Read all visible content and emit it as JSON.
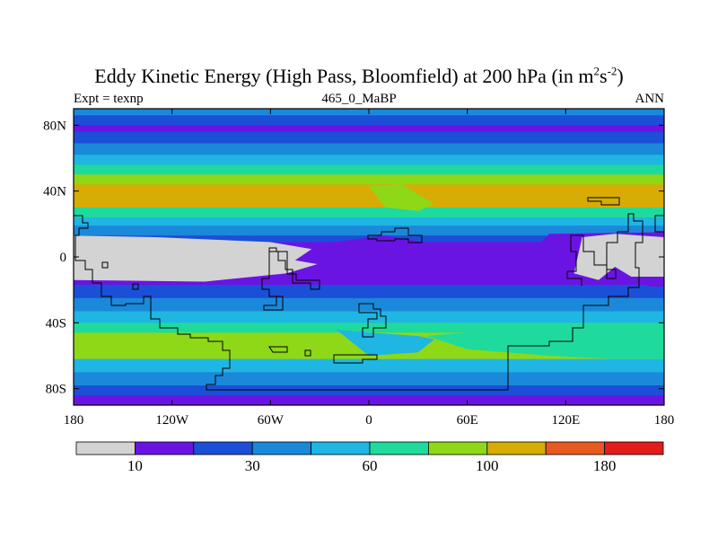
{
  "header": {
    "title_main": "Eddy Kinetic Energy (High Pass, Bloomfield) at 200 hPa (in m",
    "title_sup1": "2",
    "title_mid": "s",
    "title_sup2": "-2",
    "title_end": ")",
    "left_label": "Expt = texnp",
    "center_label": "465_0_MaBP",
    "right_label": "ANN"
  },
  "chart_data": {
    "type": "heatmap",
    "title": "Eddy Kinetic Energy (High Pass, Bloomfield) at 200 hPa (in m2s-2)",
    "subtitle": "465_0_MaBP",
    "xlim": [
      -180,
      180
    ],
    "ylim": [
      -90,
      90
    ],
    "x_ticks": [
      {
        "value": -180,
        "label": "180"
      },
      {
        "value": -120,
        "label": "120W"
      },
      {
        "value": -60,
        "label": "60W"
      },
      {
        "value": 0,
        "label": "0"
      },
      {
        "value": 60,
        "label": "60E"
      },
      {
        "value": 120,
        "label": "120E"
      },
      {
        "value": 180,
        "label": "180"
      }
    ],
    "y_ticks": [
      {
        "value": 80,
        "label": "80N"
      },
      {
        "value": 40,
        "label": "40N"
      },
      {
        "value": 0,
        "label": "0"
      },
      {
        "value": -40,
        "label": "40S"
      },
      {
        "value": -80,
        "label": "80S"
      }
    ],
    "colorbar": {
      "colors": [
        "#d3d3d3",
        "#6a14e3",
        "#1b4fd8",
        "#1b89d9",
        "#1fb6e3",
        "#1fda9d",
        "#8ed817",
        "#d6ac05",
        "#e8591f",
        "#e31b1b"
      ],
      "labels": [
        {
          "text": "10",
          "after_bin": 1
        },
        {
          "text": "30",
          "after_bin": 3
        },
        {
          "text": "60",
          "after_bin": 5
        },
        {
          "text": "100",
          "after_bin": 7
        },
        {
          "text": "180",
          "after_bin": 9
        }
      ]
    },
    "latitude_bands": [
      {
        "lat_top": 90,
        "lat_bottom": 86,
        "level": 3
      },
      {
        "lat_top": 86,
        "lat_bottom": 80,
        "level": 2
      },
      {
        "lat_top": 80,
        "lat_bottom": 76,
        "level": 1
      },
      {
        "lat_top": 76,
        "lat_bottom": 69,
        "level": 2
      },
      {
        "lat_top": 69,
        "lat_bottom": 62,
        "level": 3
      },
      {
        "lat_top": 62,
        "lat_bottom": 56,
        "level": 4
      },
      {
        "lat_top": 56,
        "lat_bottom": 50,
        "level": 5
      },
      {
        "lat_top": 50,
        "lat_bottom": 44,
        "level": 6
      },
      {
        "lat_top": 44,
        "lat_bottom": 30,
        "level": 7
      },
      {
        "lat_top": 30,
        "lat_bottom": 24,
        "level": 5
      },
      {
        "lat_top": 24,
        "lat_bottom": 19,
        "level": 4
      },
      {
        "lat_top": 19,
        "lat_bottom": 13,
        "level": 3
      },
      {
        "lat_top": 13,
        "lat_bottom": 9,
        "level": 2
      },
      {
        "lat_top": 9,
        "lat_bottom": -17,
        "level": 1
      },
      {
        "lat_top": -17,
        "lat_bottom": -25,
        "level": 2
      },
      {
        "lat_top": -25,
        "lat_bottom": -33,
        "level": 3
      },
      {
        "lat_top": -33,
        "lat_bottom": -40,
        "level": 4
      },
      {
        "lat_top": -40,
        "lat_bottom": -46,
        "level": 5
      },
      {
        "lat_top": -46,
        "lat_bottom": -62,
        "level": 6
      },
      {
        "lat_top": -62,
        "lat_bottom": -70,
        "level": 4
      },
      {
        "lat_top": -70,
        "lat_bottom": -78,
        "level": 3
      },
      {
        "lat_top": -78,
        "lat_bottom": -84,
        "level": 2
      },
      {
        "lat_top": -84,
        "lat_bottom": -90,
        "level": 1
      }
    ],
    "regions": [
      {
        "name": "pacific-minimum",
        "level": 0,
        "lon": [
          -180,
          -180,
          -100,
          -50,
          -30,
          -30,
          -60,
          -130,
          -180
        ],
        "lat": [
          13,
          -14,
          -15,
          -10,
          -4,
          4,
          9,
          12,
          13
        ]
      },
      {
        "name": "central-weak",
        "level": 1,
        "lon": [
          -45,
          -10,
          20,
          40,
          40,
          10,
          -30,
          -45
        ],
        "lat": [
          -2,
          -8,
          -12,
          -10,
          8,
          13,
          8,
          -2
        ]
      },
      {
        "name": "east-asia-minimum",
        "level": 1,
        "lon": [
          105,
          115,
          130,
          150,
          172,
          180,
          180,
          110,
          100,
          105
        ],
        "lat": [
          -4,
          -14,
          -12,
          -12,
          -18,
          -18,
          15,
          14,
          4,
          -4
        ]
      },
      {
        "name": "west-pacific-minimum",
        "level": 0,
        "lon": [
          125,
          140,
          150,
          160,
          180,
          180,
          150,
          130,
          125
        ],
        "lat": [
          -10,
          -14,
          -6,
          -12,
          -12,
          12,
          14,
          12,
          -10
        ]
      },
      {
        "name": "atlantic-jet-gap",
        "level": 6,
        "lon": [
          0,
          20,
          30,
          40,
          30,
          10,
          0
        ],
        "lat": [
          43,
          44,
          38,
          32,
          28,
          30,
          43
        ]
      },
      {
        "name": "southern-jet-east",
        "level": 5,
        "lon": [
          35,
          80,
          130,
          160,
          180,
          180,
          150,
          110,
          60,
          35
        ],
        "lat": [
          -48,
          -44,
          -44,
          -46,
          -46,
          -62,
          -62,
          -60,
          -56,
          -48
        ]
      },
      {
        "name": "southern-jet-center",
        "level": 4,
        "lon": [
          -20,
          0,
          30,
          40,
          30,
          0,
          -20
        ],
        "lat": [
          -44,
          -46,
          -48,
          -50,
          -58,
          -60,
          -44
        ]
      },
      {
        "name": "southern-jet-spot",
        "level": 6,
        "lon": [
          -130,
          -125,
          -126,
          -131,
          -130
        ],
        "lat": [
          -47,
          -47,
          -49,
          -49,
          -47
        ]
      }
    ],
    "grid": false,
    "legend": "bottom"
  }
}
